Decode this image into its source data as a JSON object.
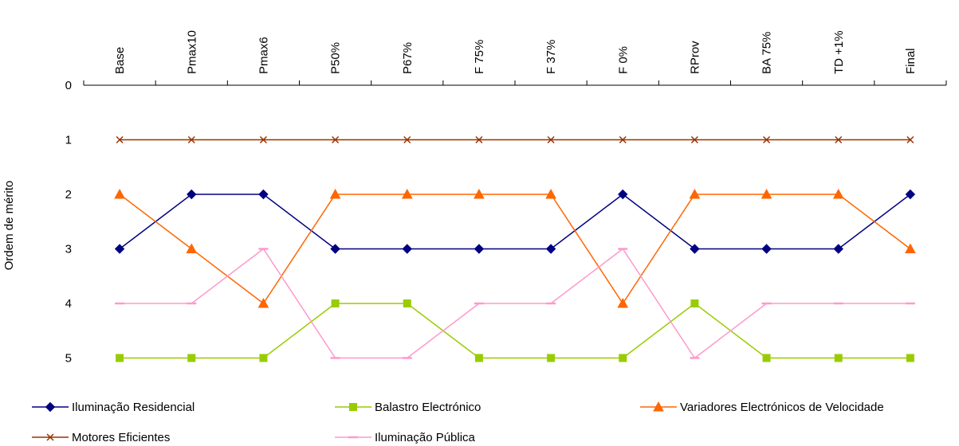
{
  "chart_data": {
    "type": "line",
    "categories": [
      "Base",
      "Pmax10",
      "Pmax6",
      "P50%",
      "P67%",
      "F 75%",
      "F 37%",
      "F 0%",
      "RProv",
      "BA 75%",
      "TD +1%",
      "Final"
    ],
    "ylabel": "Ordem de mérito",
    "xlabel": "",
    "ylim": [
      0,
      5
    ],
    "y_reversed": true,
    "y_ticks": [
      0,
      1,
      2,
      3,
      4,
      5
    ],
    "x_axis_position": "top",
    "legend_position": "bottom",
    "grid": false,
    "series": [
      {
        "name": "Iluminação Residencial",
        "color": "#000080",
        "marker": "diamond",
        "values": [
          3,
          2,
          2,
          3,
          3,
          3,
          3,
          2,
          3,
          3,
          3,
          2
        ]
      },
      {
        "name": "Balastro Electrónico",
        "color": "#99CC00",
        "marker": "square",
        "values": [
          5,
          5,
          5,
          4,
          4,
          5,
          5,
          5,
          4,
          5,
          5,
          5
        ]
      },
      {
        "name": "Variadores Electrónicos de Velocidade",
        "color": "#FF6600",
        "marker": "triangle",
        "values": [
          2,
          3,
          4,
          2,
          2,
          2,
          2,
          4,
          2,
          2,
          2,
          3
        ]
      },
      {
        "name": "Motores Eficientes",
        "color": "#993300",
        "marker": "x",
        "values": [
          1,
          1,
          1,
          1,
          1,
          1,
          1,
          1,
          1,
          1,
          1,
          1
        ]
      },
      {
        "name": "Iluminação Pública",
        "color": "#FF99CC",
        "marker": "dash",
        "values": [
          4,
          4,
          3,
          5,
          5,
          4,
          4,
          3,
          5,
          4,
          4,
          4
        ]
      }
    ]
  }
}
